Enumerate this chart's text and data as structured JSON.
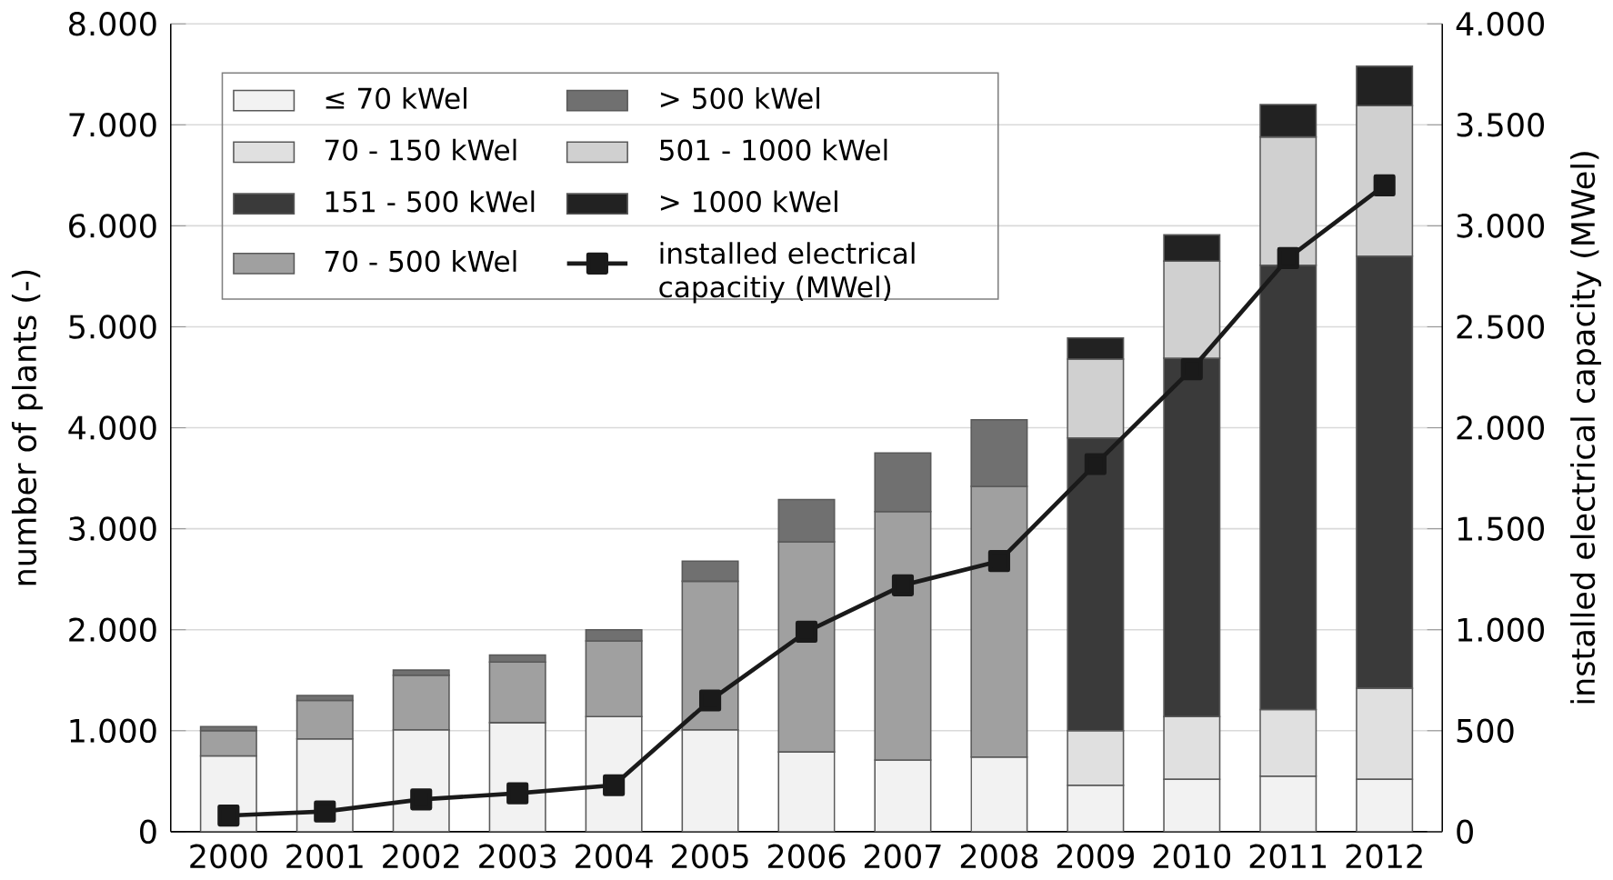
{
  "chart_data": {
    "type": "bar",
    "stacked": true,
    "ylabel": "number of plants (-)",
    "y2label": "installed electrical capacity (MWel)",
    "categories": [
      "2000",
      "2001",
      "2002",
      "2003",
      "2004",
      "2005",
      "2006",
      "2007",
      "2008",
      "2009",
      "2010",
      "2011",
      "2012"
    ],
    "series": [
      {
        "name": "≤ 70 kWel",
        "color": "#f2f2f2",
        "values": [
          750,
          920,
          1010,
          1080,
          1140,
          1010,
          790,
          710,
          740,
          460,
          520,
          550,
          520
        ]
      },
      {
        "name": "70 - 150 kWel",
        "color": "#e0e0e0",
        "values": [
          null,
          null,
          null,
          null,
          null,
          null,
          null,
          null,
          null,
          540,
          620,
          660,
          900
        ]
      },
      {
        "name": "151 - 500 kWel",
        "color": "#3a3a3a",
        "values": [
          null,
          null,
          null,
          null,
          null,
          null,
          null,
          null,
          null,
          2900,
          3550,
          4400,
          4280
        ]
      },
      {
        "name": "70 - 500 kWel",
        "color": "#a0a0a0",
        "values": [
          250,
          380,
          540,
          600,
          750,
          1470,
          2080,
          2460,
          2680,
          null,
          null,
          null,
          null
        ]
      },
      {
        "name": "> 500 kWel",
        "color": "#707070",
        "values": [
          40,
          50,
          50,
          70,
          110,
          200,
          420,
          580,
          660,
          null,
          null,
          null,
          null
        ]
      },
      {
        "name": "501 - 1000 kWel",
        "color": "#d0d0d0",
        "values": [
          null,
          null,
          null,
          null,
          null,
          null,
          null,
          null,
          null,
          780,
          960,
          1270,
          1490
        ]
      },
      {
        "name": "> 1000 kWel",
        "color": "#222222",
        "values": [
          null,
          null,
          null,
          null,
          null,
          null,
          null,
          null,
          null,
          210,
          260,
          320,
          390
        ]
      },
      {
        "name": "installed electrical capacitiy (MWel)",
        "type": "line",
        "axis": "y2",
        "color": "#1a1a1a",
        "marker": "square",
        "values": [
          80,
          100,
          160,
          190,
          230,
          650,
          990,
          1220,
          1340,
          1820,
          2290,
          2840,
          3200
        ]
      }
    ],
    "ylim": [
      0,
      8000
    ],
    "yticks": [
      0,
      {
        "value": 1000,
        "label": "1.000"
      },
      {
        "value": 2000,
        "label": "2.000"
      },
      {
        "value": 3000,
        "label": "3.000"
      },
      {
        "value": 4000,
        "label": "4.000"
      },
      {
        "value": 5000,
        "label": "5.000"
      },
      {
        "value": 6000,
        "label": "6.000"
      },
      {
        "value": 7000,
        "label": "7.000"
      },
      {
        "value": 8000,
        "label": "8.000"
      }
    ],
    "y2lim": [
      0,
      4000
    ],
    "y2ticks": [
      0,
      500,
      {
        "value": 1000,
        "label": "1.000"
      },
      {
        "value": 1500,
        "label": "1.500"
      },
      {
        "value": 2000,
        "label": "2.000"
      },
      {
        "value": 2500,
        "label": "2.500"
      },
      {
        "value": 3000,
        "label": "3.000"
      },
      {
        "value": 3500,
        "label": "3.500"
      },
      {
        "value": 4000,
        "label": "4.000"
      }
    ],
    "grid": "y",
    "legend": "top left"
  }
}
